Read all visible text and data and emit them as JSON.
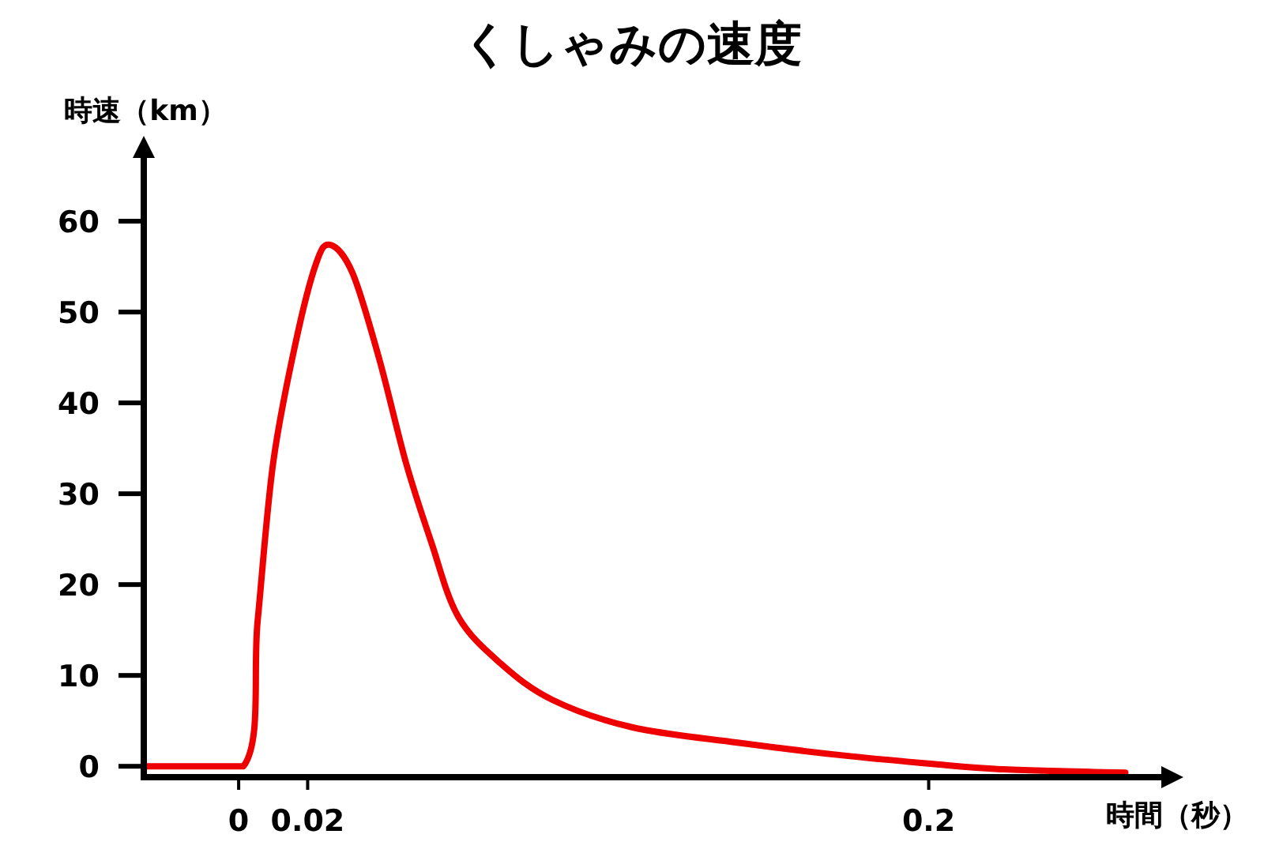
{
  "chart_data": {
    "type": "line",
    "title": "くしゃみの速度",
    "xlabel": "時間（秒）",
    "ylabel": "時速（km）",
    "xlim": [
      -0.0275,
      0.272
    ],
    "ylim": [
      -1.2,
      68.7
    ],
    "xticks": [
      0,
      0.02,
      0.2
    ],
    "yticks": [
      0,
      10,
      20,
      30,
      40,
      50,
      60
    ],
    "series": [
      {
        "color": "#ee0000",
        "x": [
          -0.0265,
          0.0014,
          0.0055,
          0.01,
          0.0165,
          0.0224,
          0.0265,
          0.033,
          0.0407,
          0.0485,
          0.0558,
          0.0636,
          0.076,
          0.091,
          0.114,
          0.1446,
          0.175,
          0.2,
          0.22,
          0.257
        ],
        "values": [
          0,
          0,
          16,
          33.4,
          46.6,
          55.3,
          57.4,
          54.3,
          44.9,
          33.4,
          24.7,
          16.5,
          11.3,
          7.3,
          4.3,
          2.6,
          1.2,
          0.3,
          -0.3,
          -0.7
        ]
      }
    ]
  }
}
